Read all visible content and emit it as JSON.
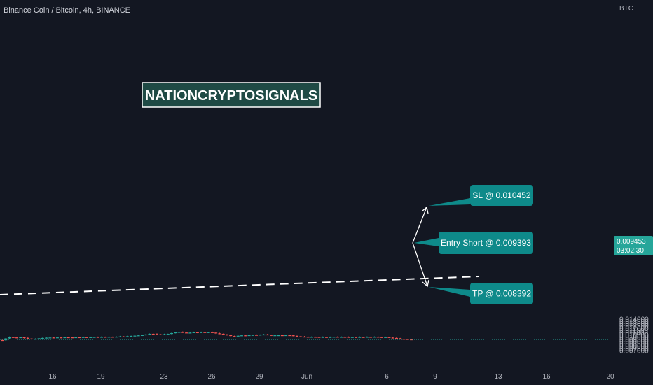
{
  "header": {
    "title": "Binance Coin / Bitcoin, 4h, BINANCE",
    "currency": "BTC"
  },
  "watermark": {
    "text": "NATIONCRYPTOSIGNALS"
  },
  "price_tag": {
    "price": "0.009453",
    "countdown": "03:02:30"
  },
  "annotations": [
    {
      "id": "sl",
      "label": "SL @ 0.010452",
      "price": 0.010452
    },
    {
      "id": "entry",
      "label": "Entry Short @ 0.009393",
      "price": 0.009393
    },
    {
      "id": "tp",
      "label": "TP @ 0.008392",
      "price": 0.008392
    }
  ],
  "colors": {
    "background": "#131722",
    "up": "#26a69a",
    "down": "#ef5350",
    "callout": "#0e8a8a",
    "text": "#b2b5be"
  },
  "chart_data": {
    "type": "candlestick",
    "timeframe": "4h",
    "ylim": [
      0.0068,
      0.0145
    ],
    "y_ticks": [
      "0.007000",
      "0.007500",
      "0.008000",
      "0.008500",
      "0.009000",
      "0.009500",
      "0.010000",
      "0.010500",
      "0.011000",
      "0.011500",
      "0.012000",
      "0.012500",
      "0.013000",
      "0.013500",
      "0.014000"
    ],
    "x_ticks": [
      "16",
      "19",
      "23",
      "26",
      "29",
      "Jun",
      "6",
      "9",
      "13",
      "16",
      "20"
    ],
    "close_series": [
      0.0093,
      0.00972,
      0.01002,
      0.00994,
      0.00985,
      0.00998,
      0.00982,
      0.00968,
      0.00958,
      0.00962,
      0.00975,
      0.00982,
      0.00988,
      0.00992,
      0.0099,
      0.00994,
      0.00991,
      0.00997,
      0.00995,
      0.00993,
      0.00998,
      0.00995,
      0.01001,
      0.00996,
      0.01,
      0.01004,
      0.01001,
      0.01006,
      0.01003,
      0.01008,
      0.01005,
      0.01011,
      0.01015,
      0.01012,
      0.0102,
      0.01028,
      0.01034,
      0.0104,
      0.01046,
      0.0106,
      0.01075,
      0.01071,
      0.01062,
      0.01058,
      0.01065,
      0.01072,
      0.0109,
      0.01106,
      0.01115,
      0.01102,
      0.01096,
      0.011,
      0.01108,
      0.01102,
      0.01111,
      0.01104,
      0.0111,
      0.01101,
      0.01085,
      0.01075,
      0.0106,
      0.01045,
      0.01025,
      0.01018,
      0.01032,
      0.0104,
      0.01036,
      0.01044,
      0.0105,
      0.01048,
      0.01055,
      0.0106,
      0.0105,
      0.0104,
      0.01042,
      0.01043,
      0.0104,
      0.01044,
      0.01041,
      0.0103,
      0.01018,
      0.01012,
      0.01008,
      0.01005,
      0.01007,
      0.01004,
      0.01,
      0.01003,
      0.00998,
      0.01002,
      0.01008,
      0.01005,
      0.01006,
      0.01004,
      0.00999,
      0.01002,
      0.00998,
      0.01003,
      0.01,
      0.01006,
      0.01004,
      0.01008,
      0.01003,
      0.00996,
      0.01001,
      0.0099,
      0.00982,
      0.00975,
      0.00962,
      0.00958,
      0.0095,
      0.00945
    ]
  }
}
